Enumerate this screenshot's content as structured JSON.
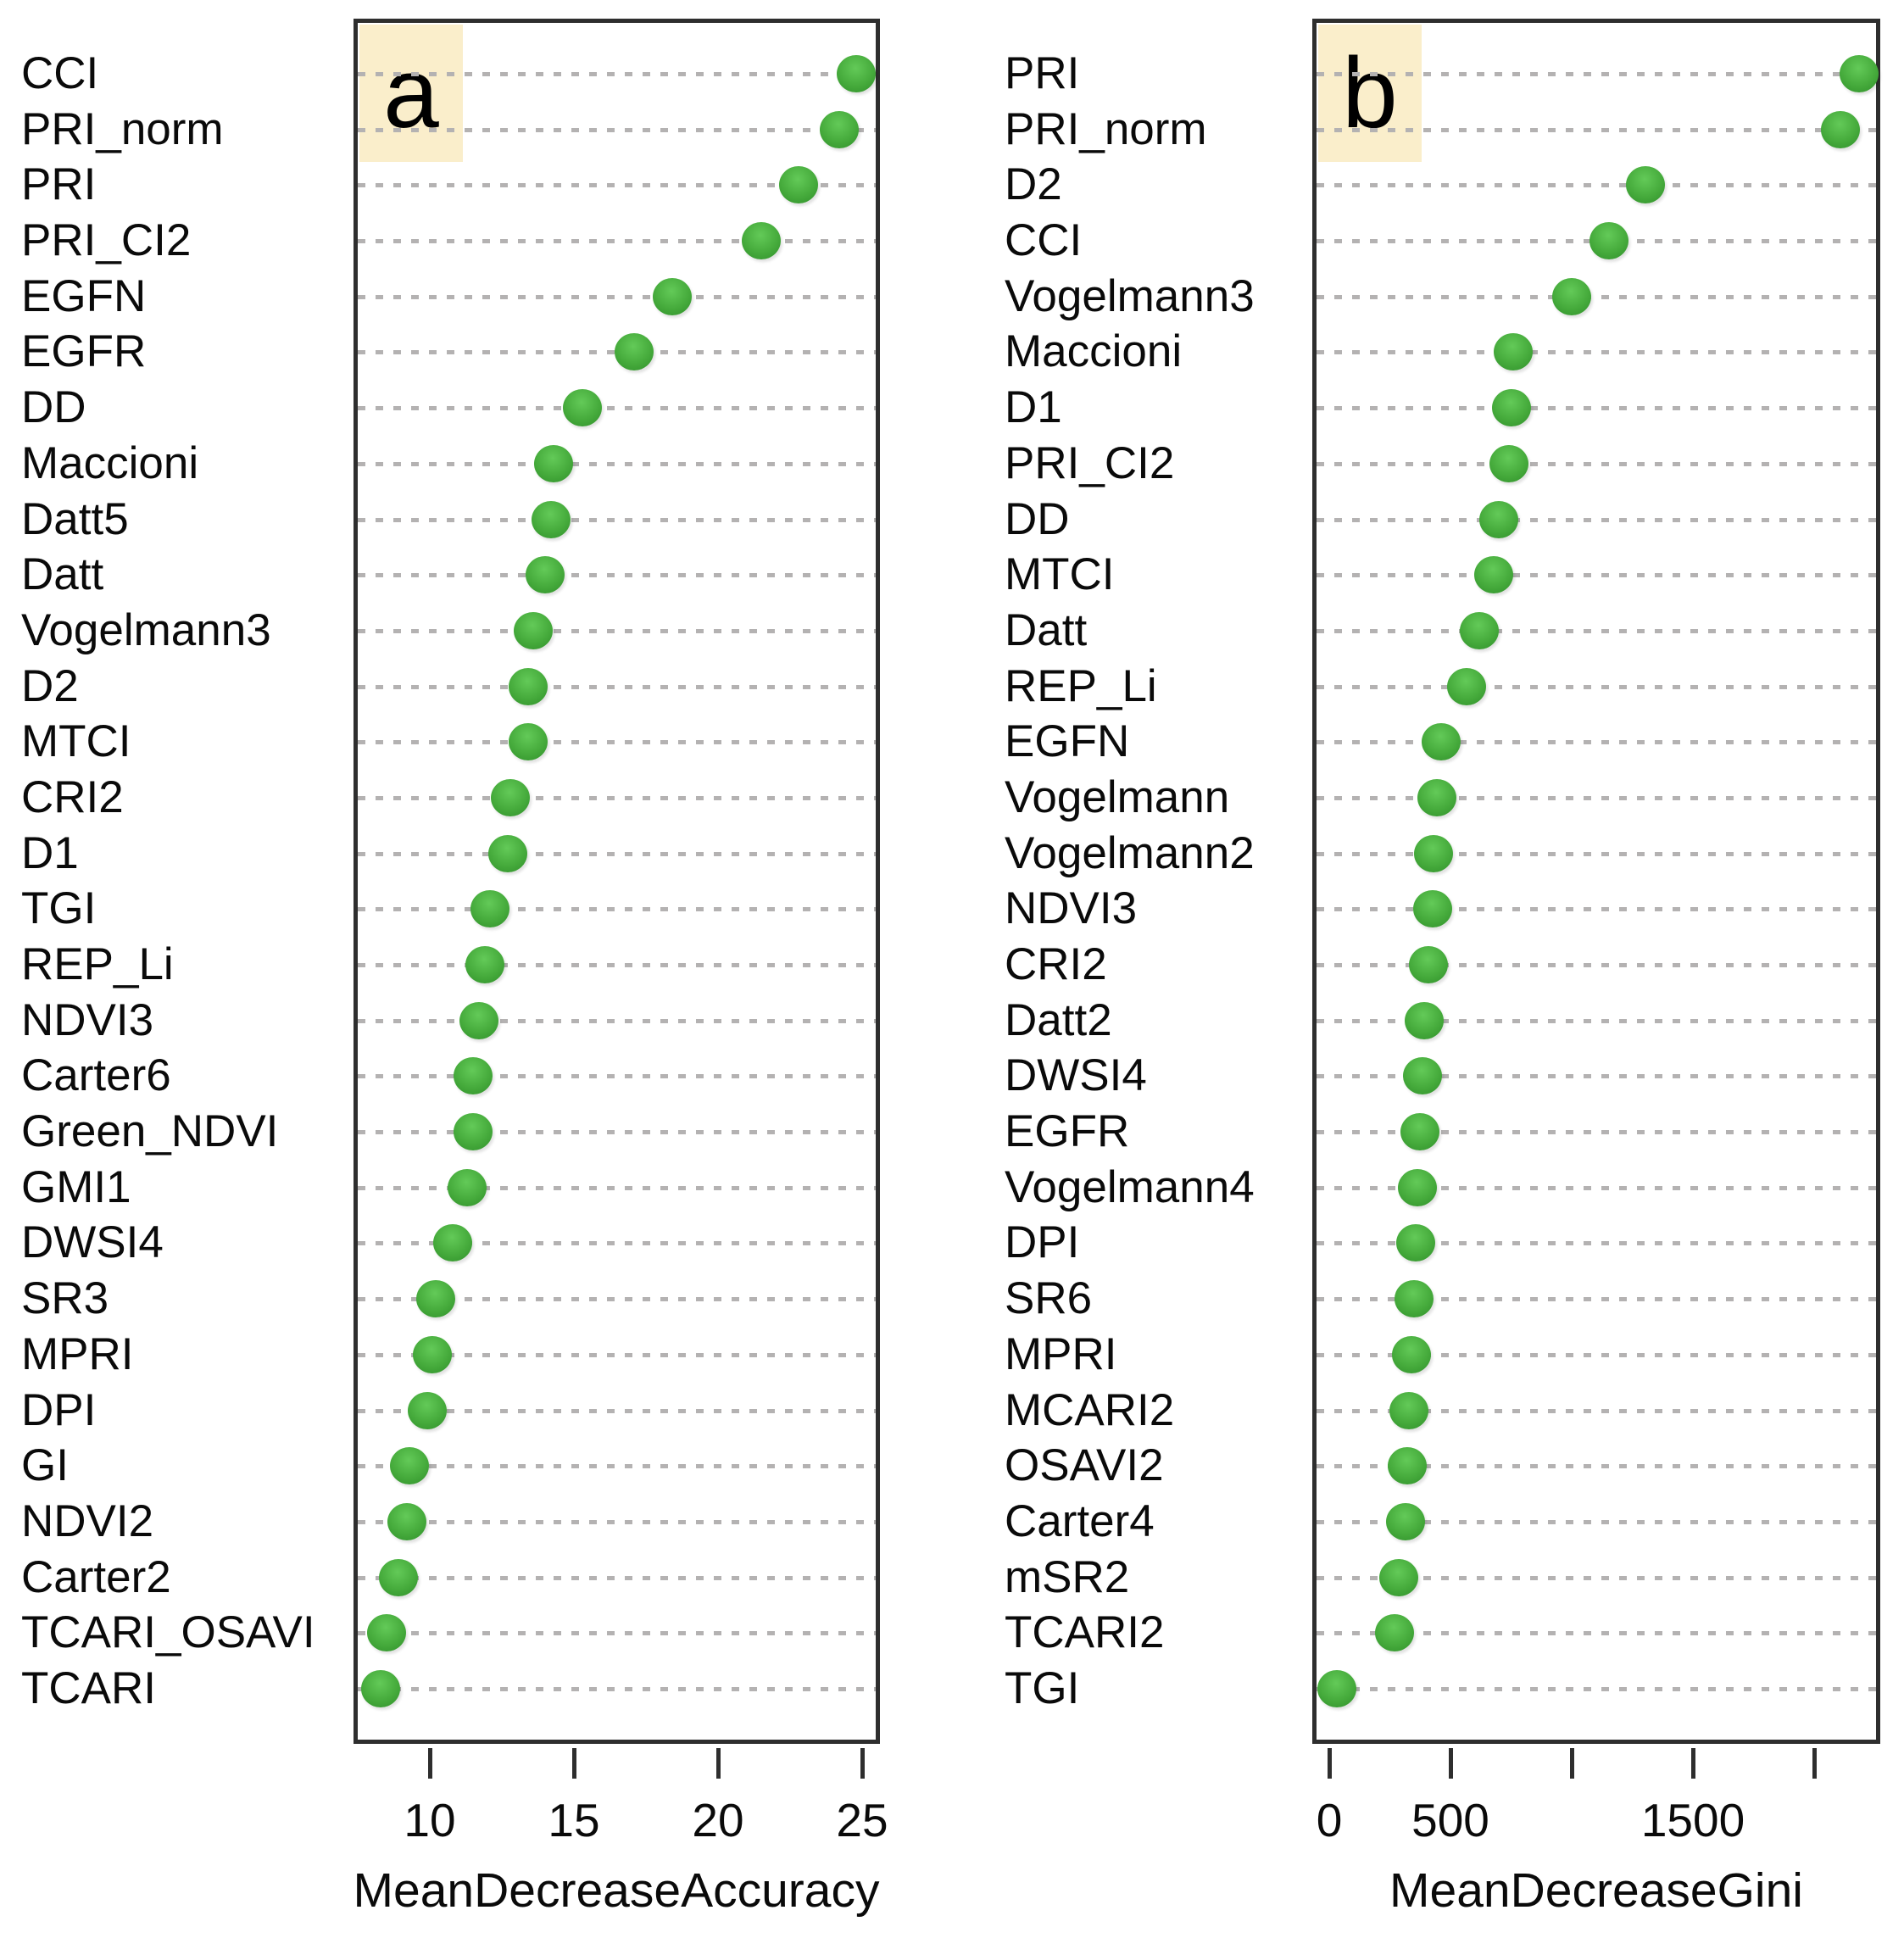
{
  "figure": {
    "description": "Random forest variable importance dot charts, two panels",
    "panel_a_letter": "a",
    "panel_b_letter": "b"
  },
  "colors": {
    "marker_green": "#46ab3c",
    "gridline_gray": "#b4b2b2",
    "frame_dark": "#2e2e2e",
    "corner_label_beige": "#faeecb",
    "text_black": "#0a0a0a"
  },
  "chart_data": [
    {
      "type": "scatter",
      "panel": "a",
      "panel_letter": "a",
      "xlabel": "MeanDecreaseAccuracy",
      "grid": "horizontal dotted",
      "legend": "none",
      "marker": "filled green circle",
      "xrange": [
        7.4,
        25.6
      ],
      "ticks": [
        10,
        15,
        20,
        25
      ],
      "tick_labels": [
        "10",
        "15",
        "20",
        "25"
      ],
      "categories": [
        "CCI",
        "PRI_norm",
        "PRI",
        "PRI_CI2",
        "EGFN",
        "EGFR",
        "DD",
        "Maccioni",
        "Datt5",
        "Datt",
        "Vogelmann3",
        "D2",
        "MTCI",
        "CRI2",
        "D1",
        "TGI",
        "REP_Li",
        "NDVI3",
        "Carter6",
        "Green_NDVI",
        "GMI1",
        "DWSI4",
        "SR3",
        "MPRI",
        "DPI",
        "GI",
        "NDVI2",
        "Carter2",
        "TCARI_OSAVI",
        "TCARI"
      ],
      "values": [
        24.8,
        24.2,
        22.8,
        21.5,
        18.4,
        17.1,
        15.3,
        14.3,
        14.2,
        14.0,
        13.6,
        13.4,
        13.4,
        12.8,
        12.7,
        12.1,
        11.9,
        11.7,
        11.5,
        11.5,
        11.3,
        10.8,
        10.2,
        10.1,
        9.9,
        9.3,
        9.2,
        8.9,
        8.5,
        8.3
      ]
    },
    {
      "type": "scatter",
      "panel": "b",
      "panel_letter": "b",
      "xlabel": "MeanDecreaseGini",
      "grid": "horizontal dotted",
      "legend": "none",
      "marker": "filled green circle",
      "xrange": [
        -66,
        2270
      ],
      "ticks": [
        0,
        500,
        1000,
        1500,
        2000
      ],
      "tick_labels": [
        "0",
        "500",
        "",
        "1500",
        ""
      ],
      "categories": [
        "PRI",
        "PRI_norm",
        "D2",
        "CCI",
        "Vogelmann3",
        "Maccioni",
        "D1",
        "PRI_CI2",
        "DD",
        "MTCI",
        "Datt",
        "REP_Li",
        "EGFN",
        "Vogelmann",
        "Vogelmann2",
        "NDVI3",
        "CRI2",
        "Datt2",
        "DWSI4",
        "EGFR",
        "Vogelmann4",
        "DPI",
        "SR6",
        "MPRI",
        "MCARI2",
        "OSAVI2",
        "Carter4",
        "mSR2",
        "TCARI2",
        "TGI"
      ],
      "values": [
        2185,
        2110,
        1305,
        1155,
        1000,
        760,
        750,
        740,
        700,
        680,
        620,
        565,
        460,
        445,
        430,
        425,
        410,
        390,
        385,
        375,
        365,
        355,
        350,
        340,
        330,
        320,
        315,
        285,
        270,
        30
      ]
    }
  ]
}
